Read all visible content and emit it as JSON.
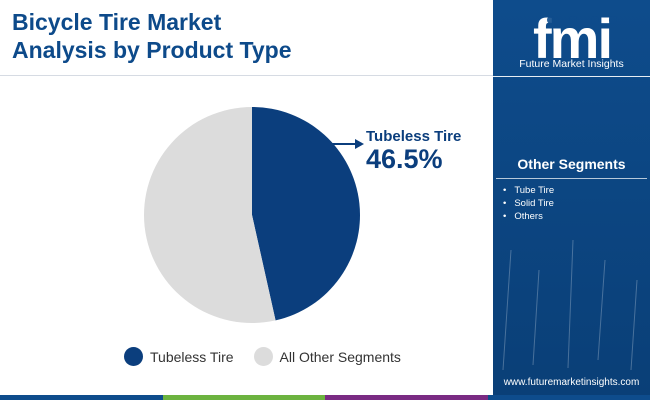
{
  "title_line1": "Bicycle Tire Market",
  "title_line2": "Analysis by Product Type",
  "chart_data": {
    "type": "pie",
    "title": "Bicycle Tire Market Analysis by Product Type",
    "slices": [
      {
        "label": "Tubeless Tire",
        "value": 46.5,
        "color": "#0b3e7d"
      },
      {
        "label": "All Other Segments",
        "value": 53.5,
        "color": "#dcdcdc"
      }
    ],
    "callout": {
      "label": "Tubeless Tire",
      "value_text": "46.5%"
    },
    "legend": [
      "Tubeless Tire",
      "All Other Segments"
    ],
    "legend_position": "bottom"
  },
  "panel": {
    "logo_text": "fmi",
    "logo_subtitle": "Future Market Insights",
    "other_segments_title": "Other Segments",
    "other_segments": [
      "Tube Tire",
      "Solid Tire",
      "Others"
    ],
    "url": "www.futuremarketinsights.com",
    "background_color": "#0e4c8c"
  },
  "bottom_bar_colors": [
    "#0e4c8c",
    "#6cb33f",
    "#7a2b83",
    "#0e4c8c"
  ]
}
